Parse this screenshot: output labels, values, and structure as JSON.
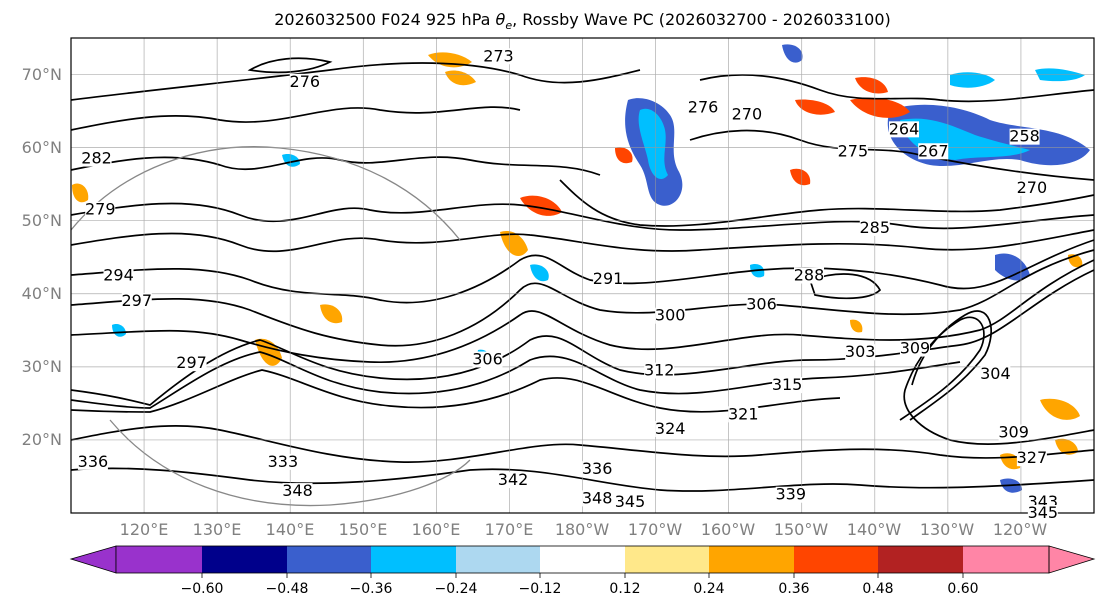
{
  "title": {
    "prefix": "2026032500 F024 925 hPa ",
    "theta": "θ",
    "sub": "e",
    "suffix": ", Rossby Wave PC (2026032700 - 2026033100)"
  },
  "lat_labels": [
    "70°N",
    "60°N",
    "50°N",
    "40°N",
    "30°N",
    "20°N"
  ],
  "lat_values": [
    70,
    60,
    50,
    40,
    30,
    20
  ],
  "lon_labels": [
    "120°E",
    "130°E",
    "140°E",
    "150°E",
    "160°E",
    "170°E",
    "180°W",
    "170°W",
    "160°W",
    "150°W",
    "140°W",
    "130°W",
    "120°W"
  ],
  "colorbar": {
    "ticks": [
      "−0.60",
      "−0.48",
      "−0.36",
      "−0.24",
      "−0.12",
      "0.12",
      "0.24",
      "0.36",
      "0.48",
      "0.60"
    ],
    "colors": [
      "#9932CC",
      "#00008B",
      "#3A5FCD",
      "#00BFFF",
      "#ADD8F0",
      "#FFFFFF",
      "#FFE88A",
      "#FFA500",
      "#FF4500",
      "#B22222",
      "#FF85A6"
    ]
  },
  "contour_labels": [
    {
      "text": "273",
      "lon": 168.5,
      "lat": 72.5
    },
    {
      "text": "276",
      "lon": 142.0,
      "lat": 69.0
    },
    {
      "text": "282",
      "lon": 113.5,
      "lat": 58.5
    },
    {
      "text": "279",
      "lon": 114.0,
      "lat": 51.5
    },
    {
      "text": "294",
      "lon": 116.5,
      "lat": 42.5
    },
    {
      "text": "297",
      "lon": 119.0,
      "lat": 39.0
    },
    {
      "text": "297",
      "lon": 126.5,
      "lat": 30.5
    },
    {
      "text": "306",
      "lon": 167.0,
      "lat": 31.0
    },
    {
      "text": "291",
      "lon": 183.5,
      "lat": 42.0
    },
    {
      "text": "300",
      "lon": 192.0,
      "lat": 37.0
    },
    {
      "text": "306",
      "lon": 204.5,
      "lat": 38.5
    },
    {
      "text": "288",
      "lon": 211.0,
      "lat": 42.5
    },
    {
      "text": "285",
      "lon": 220.0,
      "lat": 49.0
    },
    {
      "text": "312",
      "lon": 190.5,
      "lat": 29.5
    },
    {
      "text": "315",
      "lon": 208.0,
      "lat": 27.5
    },
    {
      "text": "303",
      "lon": 218.0,
      "lat": 32.0
    },
    {
      "text": "309",
      "lon": 225.5,
      "lat": 32.5
    },
    {
      "text": "321",
      "lon": 202.0,
      "lat": 23.5
    },
    {
      "text": "324",
      "lon": 192.0,
      "lat": 21.5
    },
    {
      "text": "336",
      "lon": 182.0,
      "lat": 16.0
    },
    {
      "text": "342",
      "lon": 170.5,
      "lat": 14.5
    },
    {
      "text": "339",
      "lon": 208.5,
      "lat": 12.5
    },
    {
      "text": "348",
      "lon": 182.0,
      "lat": 12.0
    },
    {
      "text": "345",
      "lon": 186.5,
      "lat": 11.5
    },
    {
      "text": "348",
      "lon": 141.0,
      "lat": 13.0
    },
    {
      "text": "333",
      "lon": 139.0,
      "lat": 17.0
    },
    {
      "text": "336",
      "lon": 113.0,
      "lat": 17.0
    },
    {
      "text": "276",
      "lon": 196.5,
      "lat": 65.5
    },
    {
      "text": "270",
      "lon": 202.5,
      "lat": 64.5
    },
    {
      "text": "264",
      "lon": 224.0,
      "lat": 62.5
    },
    {
      "text": "275",
      "lon": 217.0,
      "lat": 59.5
    },
    {
      "text": "267",
      "lon": 228.0,
      "lat": 59.5
    },
    {
      "text": "258",
      "lon": 240.5,
      "lat": 61.5
    },
    {
      "text": "309",
      "lon": 239.0,
      "lat": 21.0
    },
    {
      "text": "304",
      "lon": 236.5,
      "lat": 29.0
    },
    {
      "text": "327",
      "lon": 241.5,
      "lat": 17.5
    },
    {
      "text": "343",
      "lon": 243.0,
      "lat": 11.5
    },
    {
      "text": "345",
      "lon": 243.0,
      "lat": 10.0
    },
    {
      "text": "270",
      "lon": 241.5,
      "lat": 54.5
    }
  ]
}
